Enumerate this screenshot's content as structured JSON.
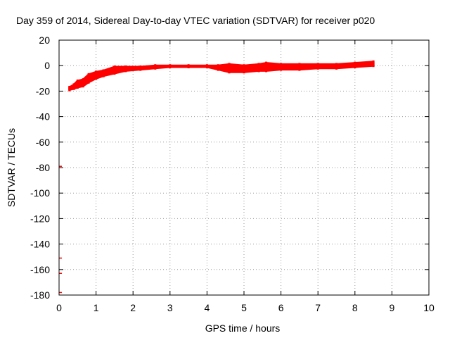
{
  "chart_data": {
    "type": "scatter",
    "title": "Day 359 of 2014, Sidereal Day-to-day VTEC variation (SDTVAR) for receiver p020",
    "xlabel": "GPS time / hours",
    "ylabel": "SDTVAR / TECUs",
    "xlim": [
      0,
      10
    ],
    "ylim": [
      -180,
      20
    ],
    "grid": true,
    "legend": "none",
    "x_ticks": [
      "0",
      "1",
      "2",
      "3",
      "4",
      "5",
      "6",
      "7",
      "8",
      "9",
      "10"
    ],
    "y_ticks": [
      "20",
      "0",
      "-20",
      "-40",
      "-60",
      "-80",
      "-100",
      "-120",
      "-140",
      "-160",
      "-180"
    ],
    "series": [
      {
        "name": "SDTVAR band upper",
        "color": "#ff0000",
        "x": [
          0.28,
          0.4,
          0.5,
          0.65,
          0.8,
          1.0,
          1.2,
          1.5,
          1.8,
          2.2,
          2.6,
          3.0,
          3.5,
          4.0,
          4.3,
          4.6,
          5.0,
          5.4,
          5.6,
          6.0,
          6.5,
          7.0,
          7.5,
          8.0,
          8.5
        ],
        "values": [
          -17,
          -15,
          -12,
          -11,
          -7,
          -5,
          -4,
          -1,
          -1,
          -1,
          0,
          0,
          0,
          0,
          0,
          1,
          0,
          1,
          2,
          1,
          1,
          1,
          1,
          2,
          3
        ]
      },
      {
        "name": "SDTVAR band lower",
        "color": "#ff0000",
        "x": [
          0.28,
          0.4,
          0.5,
          0.65,
          0.8,
          1.0,
          1.2,
          1.5,
          1.8,
          2.2,
          2.6,
          3.0,
          3.5,
          4.0,
          4.3,
          4.6,
          5.0,
          5.4,
          5.6,
          6.0,
          6.5,
          7.0,
          7.5,
          8.0,
          8.5
        ],
        "values": [
          -19,
          -18,
          -17,
          -16,
          -13,
          -10,
          -8,
          -6,
          -4,
          -3,
          -2,
          -1,
          -1,
          -1,
          -3,
          -5,
          -5,
          -4,
          -4,
          -3,
          -3,
          -2,
          -2,
          -1,
          0
        ]
      },
      {
        "name": "outliers",
        "color": "#ff0000",
        "x": [
          0.02,
          0.02,
          0.02,
          0.02
        ],
        "values": [
          -79,
          -151,
          -163,
          -178
        ]
      }
    ]
  }
}
